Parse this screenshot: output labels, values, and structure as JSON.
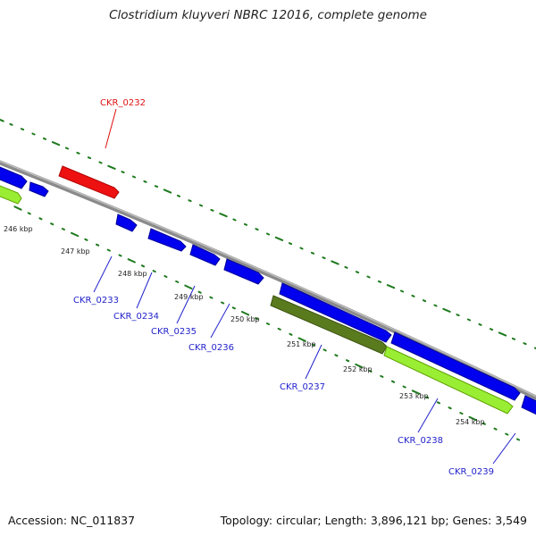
{
  "title": "Clostridium kluyveri NBRC 12016, complete genome",
  "footer": {
    "accession": "Accession: NC_011837",
    "summary": "Topology: circular; Length: 3,896,121 bp; Genes: 3,549"
  },
  "colors": {
    "backbone": "#888888",
    "ruler_ticks": "#1e7a1e",
    "gene_forward": "#0000ee",
    "gene_highlight": "#ee1111",
    "gene_light_green": "#99ee33",
    "gene_dark_green": "#5a7a1e",
    "label_blue": "#2222cc",
    "label_red": "#dd1111"
  },
  "scale_labels": [
    "246 kbp",
    "247 kbp",
    "248 kbp",
    "249 kbp",
    "250 kbp",
    "251 kbp",
    "252 kbp",
    "253 kbp",
    "254 kbp"
  ],
  "gene_labels": [
    {
      "name": "CKR_0232",
      "color": "red"
    },
    {
      "name": "CKR_0233",
      "color": "blue"
    },
    {
      "name": "CKR_0234",
      "color": "blue"
    },
    {
      "name": "CKR_0235",
      "color": "blue"
    },
    {
      "name": "CKR_0236",
      "color": "blue"
    },
    {
      "name": "CKR_0237",
      "color": "blue"
    },
    {
      "name": "CKR_0238",
      "color": "blue"
    },
    {
      "name": "CKR_0239",
      "color": "blue"
    }
  ]
}
